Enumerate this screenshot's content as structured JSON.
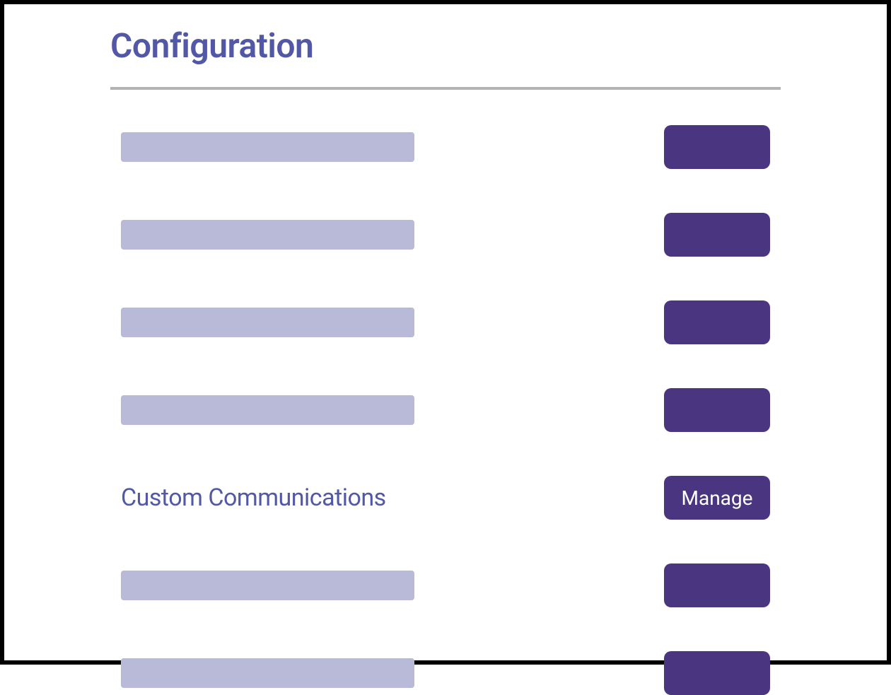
{
  "page": {
    "title": "Configuration"
  },
  "colors": {
    "title_text": "#5358a6",
    "label_text": "#5358a6",
    "placeholder_bg": "#b8bad8",
    "button_bg": "#4a3680",
    "button_text": "#ffffff",
    "divider": "#b3b3b3",
    "frame_border": "#000000",
    "background": "#ffffff"
  },
  "config": {
    "rows": [
      {
        "label": "",
        "is_placeholder": true,
        "button_label": ""
      },
      {
        "label": "",
        "is_placeholder": true,
        "button_label": ""
      },
      {
        "label": "",
        "is_placeholder": true,
        "button_label": ""
      },
      {
        "label": "",
        "is_placeholder": true,
        "button_label": ""
      },
      {
        "label": "Custom Communications",
        "is_placeholder": false,
        "button_label": "Manage"
      },
      {
        "label": "",
        "is_placeholder": true,
        "button_label": ""
      },
      {
        "label": "",
        "is_placeholder": true,
        "button_label": ""
      }
    ]
  }
}
